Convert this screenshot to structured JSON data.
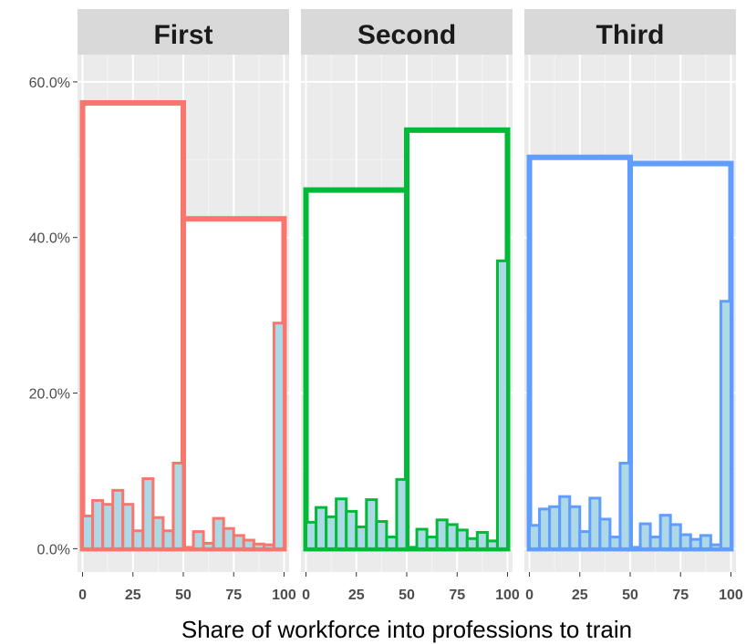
{
  "chart_data": {
    "type": "bar",
    "xlabel": "Share of workforce into professions to train",
    "ylabel": "",
    "xlim": [
      -2.5,
      102.5
    ],
    "ylim": [
      -3,
      63.5
    ],
    "x_ticks": [
      0,
      25,
      50,
      75,
      100
    ],
    "x_tick_labels": [
      "0",
      "25",
      "50",
      "75",
      "100"
    ],
    "y_ticks": [
      0,
      20,
      40,
      60
    ],
    "y_tick_labels": [
      "0.0%",
      "20.0%",
      "40.0%",
      "60.0%"
    ],
    "grid": true,
    "fine_bin_width": 5,
    "fine_bin_fill": "#add8e6",
    "panels": [
      {
        "name": "First",
        "color": "#f8766d",
        "coarse_bins": [
          {
            "xmin": 0,
            "xmax": 50,
            "value": 57.3
          },
          {
            "xmin": 50,
            "xmax": 100,
            "value": 42.4
          }
        ],
        "fine_bins": [
          {
            "x": 0,
            "value": 4.2
          },
          {
            "x": 5,
            "value": 6.2
          },
          {
            "x": 10,
            "value": 5.7
          },
          {
            "x": 15,
            "value": 7.5
          },
          {
            "x": 20,
            "value": 5.7
          },
          {
            "x": 25,
            "value": 2.3
          },
          {
            "x": 30,
            "value": 9.0
          },
          {
            "x": 35,
            "value": 4.0
          },
          {
            "x": 40,
            "value": 2.3
          },
          {
            "x": 45,
            "value": 11.0
          },
          {
            "x": 55,
            "value": 2.2
          },
          {
            "x": 60,
            "value": 0.7
          },
          {
            "x": 65,
            "value": 3.9
          },
          {
            "x": 70,
            "value": 2.6
          },
          {
            "x": 75,
            "value": 1.7
          },
          {
            "x": 80,
            "value": 1.1
          },
          {
            "x": 85,
            "value": 0.6
          },
          {
            "x": 90,
            "value": 0.5
          },
          {
            "x": 95,
            "value": 29.0
          }
        ]
      },
      {
        "name": "Second",
        "color": "#00ba38",
        "coarse_bins": [
          {
            "xmin": 0,
            "xmax": 50,
            "value": 46.1
          },
          {
            "xmin": 50,
            "xmax": 100,
            "value": 53.8
          }
        ],
        "fine_bins": [
          {
            "x": 0,
            "value": 3.4
          },
          {
            "x": 5,
            "value": 5.3
          },
          {
            "x": 10,
            "value": 4.1
          },
          {
            "x": 15,
            "value": 6.4
          },
          {
            "x": 20,
            "value": 4.8
          },
          {
            "x": 25,
            "value": 2.8
          },
          {
            "x": 30,
            "value": 6.3
          },
          {
            "x": 35,
            "value": 3.5
          },
          {
            "x": 40,
            "value": 1.5
          },
          {
            "x": 45,
            "value": 8.9
          },
          {
            "x": 55,
            "value": 2.5
          },
          {
            "x": 60,
            "value": 1.5
          },
          {
            "x": 65,
            "value": 3.7
          },
          {
            "x": 70,
            "value": 3.1
          },
          {
            "x": 75,
            "value": 2.4
          },
          {
            "x": 80,
            "value": 1.3
          },
          {
            "x": 85,
            "value": 2.1
          },
          {
            "x": 90,
            "value": 1.0
          },
          {
            "x": 95,
            "value": 37.0
          }
        ]
      },
      {
        "name": "Third",
        "color": "#619cff",
        "coarse_bins": [
          {
            "xmin": 0,
            "xmax": 50,
            "value": 50.3
          },
          {
            "xmin": 50,
            "xmax": 100,
            "value": 49.5
          }
        ],
        "fine_bins": [
          {
            "x": 0,
            "value": 3.0
          },
          {
            "x": 5,
            "value": 5.1
          },
          {
            "x": 10,
            "value": 5.4
          },
          {
            "x": 15,
            "value": 6.7
          },
          {
            "x": 20,
            "value": 5.4
          },
          {
            "x": 25,
            "value": 2.2
          },
          {
            "x": 30,
            "value": 6.5
          },
          {
            "x": 35,
            "value": 3.8
          },
          {
            "x": 40,
            "value": 1.5
          },
          {
            "x": 45,
            "value": 11.0
          },
          {
            "x": 55,
            "value": 3.2
          },
          {
            "x": 60,
            "value": 1.5
          },
          {
            "x": 65,
            "value": 4.3
          },
          {
            "x": 70,
            "value": 3.1
          },
          {
            "x": 75,
            "value": 1.8
          },
          {
            "x": 80,
            "value": 1.2
          },
          {
            "x": 85,
            "value": 1.7
          },
          {
            "x": 90,
            "value": 0.5
          },
          {
            "x": 95,
            "value": 31.8
          }
        ]
      }
    ]
  }
}
